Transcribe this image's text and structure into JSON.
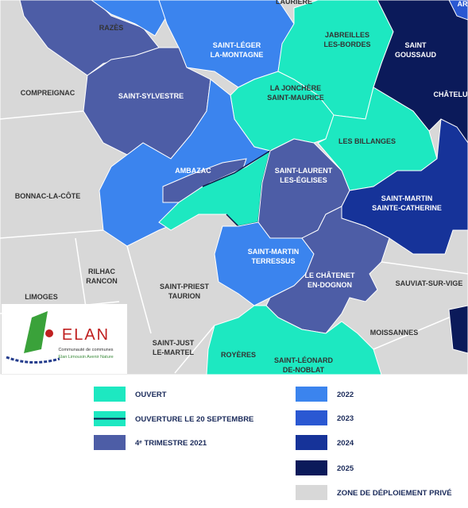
{
  "map": {
    "communes": [
      {
        "lines": [
          "LAURIERE"
        ]
      },
      {
        "lines": [
          "RAZÈS"
        ]
      },
      {
        "lines": [
          "SAINT-LÉGER",
          "LA-MONTAGNE"
        ]
      },
      {
        "lines": [
          "JABREILLES",
          "LES-BORDES"
        ]
      },
      {
        "lines": [
          "SAINT",
          "GOUSSAUD"
        ]
      },
      {
        "lines": [
          "CHÂTELU"
        ]
      },
      {
        "lines": [
          "COMPREIGNAC"
        ]
      },
      {
        "lines": [
          "SAINT-SYLVESTRE"
        ]
      },
      {
        "lines": [
          "LA JONCHÈRE",
          "SAINT-MAURICE"
        ]
      },
      {
        "lines": [
          "LES BILLANGES"
        ]
      },
      {
        "lines": [
          "AMBAZAC"
        ]
      },
      {
        "lines": [
          "SAINT-LAURENT",
          "LES-ÉGLISES"
        ]
      },
      {
        "lines": [
          "BONNAC-LA-CÔTE"
        ]
      },
      {
        "lines": [
          "SAINT-MARTIN",
          "SAINTE-CATHERINE"
        ]
      },
      {
        "lines": [
          "SAINT-MARTIN",
          "TERRESSUS"
        ]
      },
      {
        "lines": [
          "RILHAC",
          "RANCON"
        ]
      },
      {
        "lines": [
          "LE CHÂTENET",
          "EN-DOGNON"
        ]
      },
      {
        "lines": [
          "SAUVIAT-SUR-VIGE"
        ]
      },
      {
        "lines": [
          "SAINT-PRIEST",
          "TAURION"
        ]
      },
      {
        "lines": [
          "LIMOGES"
        ]
      },
      {
        "lines": [
          "MOISSANNES"
        ]
      },
      {
        "lines": [
          "SAINT-JUST",
          "LE-MARTEL"
        ]
      },
      {
        "lines": [
          "ROYÈRES"
        ]
      },
      {
        "lines": [
          "SAINT-LÉONARD",
          "DE-NOBLAT"
        ]
      },
      {
        "lines": [
          "AR"
        ]
      }
    ],
    "logo": {
      "title": "ELAN",
      "subtitle": "Communauté de communes",
      "tagline": "Elan Limousin Avenir Nature"
    },
    "legend": [
      {
        "label": "OUVERT",
        "color": "#1de8c1"
      },
      {
        "label": "OUVERTURE LE 20 SEPTEMBRE",
        "color": "#1de8c1"
      },
      {
        "label": "4ᵉ TRIMESTRE 2021",
        "color": "#4d5da6"
      },
      {
        "label": "2022",
        "color": "#3b84ee"
      },
      {
        "label": "2023",
        "color": "#2a58d2"
      },
      {
        "label": "2024",
        "color": "#163399"
      },
      {
        "label": "2025",
        "color": "#0b1a5a"
      },
      {
        "label": "ZONE DE DÉPLOIEMENT PRIVÉ",
        "color": "#d8d8d8"
      }
    ]
  }
}
